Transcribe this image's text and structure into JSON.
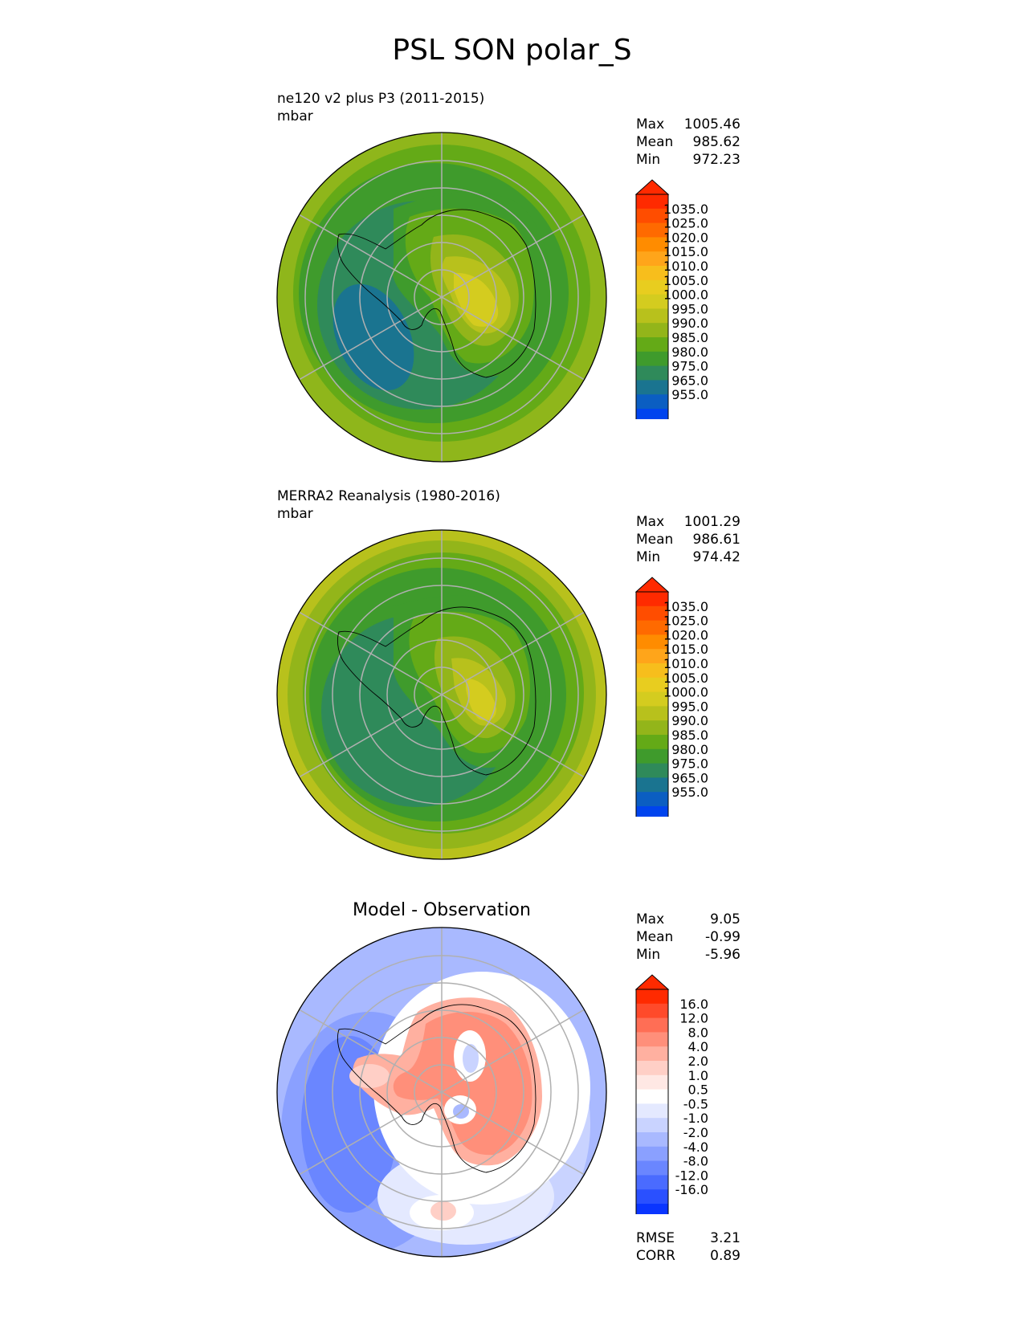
{
  "figure": {
    "title": "PSL SON polar_S"
  },
  "panels": [
    {
      "id": "model",
      "title_line1": "ne120 v2 plus P3 (2011-2015)",
      "title_line2": "mbar",
      "stats": [
        {
          "label": "Max",
          "value": "1005.46"
        },
        {
          "label": "Mean",
          "value": "985.62"
        },
        {
          "label": "Min",
          "value": "972.23"
        }
      ],
      "colorbar": {
        "labels": [
          "1035.0",
          "1025.0",
          "1020.0",
          "1015.0",
          "1010.0",
          "1005.0",
          "1000.0",
          "995.0",
          "990.0",
          "985.0",
          "980.0",
          "975.0",
          "965.0",
          "955.0"
        ],
        "colors": [
          "#ff2a00",
          "#ff4d00",
          "#ff6a00",
          "#ff8c00",
          "#ffa51a",
          "#f7be1c",
          "#e8cd1f",
          "#d4cc1f",
          "#b8c11c",
          "#93b51a",
          "#64aa17",
          "#3f9b2c",
          "#2f8a5a",
          "#1a7490",
          "#0b5ec2",
          "#0044ee"
        ],
        "top_color": "#ff2a00",
        "bottom_color": "#0044ee"
      }
    },
    {
      "id": "obs",
      "title_line1": "MERRA2 Reanalysis (1980-2016)",
      "title_line2": "mbar",
      "stats": [
        {
          "label": "Max",
          "value": "1001.29"
        },
        {
          "label": "Mean",
          "value": "986.61"
        },
        {
          "label": "Min",
          "value": "974.42"
        }
      ],
      "colorbar": {
        "labels": [
          "1035.0",
          "1025.0",
          "1020.0",
          "1015.0",
          "1010.0",
          "1005.0",
          "1000.0",
          "995.0",
          "990.0",
          "985.0",
          "980.0",
          "975.0",
          "965.0",
          "955.0"
        ],
        "colors": [
          "#ff2a00",
          "#ff4d00",
          "#ff6a00",
          "#ff8c00",
          "#ffa51a",
          "#f7be1c",
          "#e8cd1f",
          "#d4cc1f",
          "#b8c11c",
          "#93b51a",
          "#64aa17",
          "#3f9b2c",
          "#2f8a5a",
          "#1a7490",
          "#0b5ec2",
          "#0044ee"
        ],
        "top_color": "#ff2a00",
        "bottom_color": "#0044ee"
      }
    },
    {
      "id": "diff",
      "title": "Model - Observation",
      "stats": [
        {
          "label": "Max",
          "value": "9.05"
        },
        {
          "label": "Mean",
          "value": "-0.99"
        },
        {
          "label": "Min",
          "value": "-5.96"
        }
      ],
      "extra_stats": [
        {
          "label": "RMSE",
          "value": "3.21"
        },
        {
          "label": "CORR",
          "value": "0.89"
        }
      ],
      "colorbar": {
        "labels": [
          "16.0",
          "12.0",
          "8.0",
          "4.0",
          "2.0",
          "1.0",
          "0.5",
          "-0.5",
          "-1.0",
          "-2.0",
          "-4.0",
          "-8.0",
          "-12.0",
          "-16.0"
        ],
        "colors": [
          "#ff2a00",
          "#ff4a2a",
          "#ff6e55",
          "#ff8f7a",
          "#ffb0a0",
          "#ffcfc6",
          "#ffe8e4",
          "#ffffff",
          "#e4e9ff",
          "#c9d3ff",
          "#a9b9ff",
          "#8aa0ff",
          "#6a86ff",
          "#4a6bff",
          "#2a50ff",
          "#0a35ff"
        ],
        "top_color": "#ff2a00",
        "bottom_color": "#0a35ff"
      }
    }
  ],
  "chart_data": [
    {
      "type": "heatmap",
      "projection": "south polar stereographic",
      "title": "ne120 v2 plus P3 (2011-2015)",
      "units": "mbar",
      "levels": [
        955,
        965,
        975,
        980,
        985,
        990,
        995,
        1000,
        1005,
        1010,
        1015,
        1020,
        1025,
        1035
      ],
      "max": 1005.46,
      "mean": 985.62,
      "min": 972.23
    },
    {
      "type": "heatmap",
      "projection": "south polar stereographic",
      "title": "MERRA2 Reanalysis (1980-2016)",
      "units": "mbar",
      "levels": [
        955,
        965,
        975,
        980,
        985,
        990,
        995,
        1000,
        1005,
        1010,
        1015,
        1020,
        1025,
        1035
      ],
      "max": 1001.29,
      "mean": 986.61,
      "min": 974.42
    },
    {
      "type": "heatmap",
      "projection": "south polar stereographic",
      "title": "Model - Observation",
      "levels": [
        -16,
        -12,
        -8,
        -4,
        -2,
        -1,
        -0.5,
        0.5,
        1,
        2,
        4,
        8,
        12,
        16
      ],
      "max": 9.05,
      "mean": -0.99,
      "min": -5.96,
      "rmse": 3.21,
      "corr": 0.89
    }
  ]
}
